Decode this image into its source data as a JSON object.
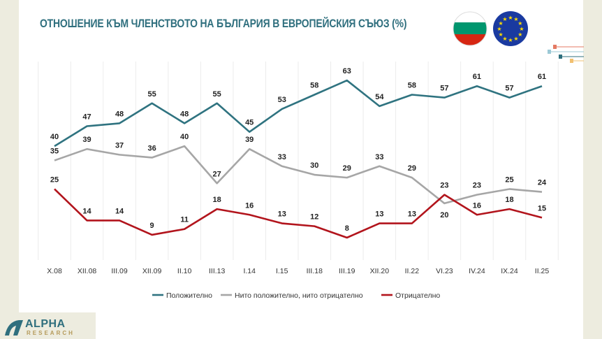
{
  "title": "ОТНОШЕНИЕ КЪМ ЧЛЕНСТВОТО НА БЪЛГАРИЯ В ЕВРОПЕЙСКИЯ СЪЮЗ (%)",
  "logo": {
    "name": "ALPHA",
    "sub": "RESEARCH"
  },
  "chart_data": {
    "type": "line",
    "title": "ОТНОШЕНИЕ КЪМ ЧЛЕНСТВОТО НА БЪЛГАРИЯ В ЕВРОПЕЙСКИЯ СЪЮЗ (%)",
    "categories": [
      "X.08",
      "XII.08",
      "III.09",
      "XII.09",
      "II.10",
      "III.13",
      "I.14",
      "I.15",
      "III.18",
      "III.19",
      "XII.20",
      "II.22",
      "VI.23",
      "IV.24",
      "IX.24",
      "II.25"
    ],
    "series": [
      {
        "name": "Положително",
        "color": "#2f7380",
        "values": [
          40,
          47,
          48,
          55,
          48,
          55,
          45,
          53,
          58,
          63,
          54,
          58,
          57,
          61,
          57,
          61
        ]
      },
      {
        "name": "Нито положително, нито отрицателно",
        "color": "#a6a6a6",
        "values": [
          35,
          39,
          37,
          36,
          40,
          27,
          39,
          33,
          30,
          29,
          33,
          29,
          20,
          23,
          25,
          24
        ]
      },
      {
        "name": "Отрицателно",
        "color": "#b2141c",
        "values": [
          25,
          14,
          14,
          9,
          11,
          18,
          16,
          13,
          12,
          8,
          13,
          13,
          23,
          16,
          18,
          15
        ]
      }
    ],
    "ylim": [
      0,
      70
    ],
    "grid": "vertical",
    "legend": "bottom",
    "data_labels": true
  }
}
